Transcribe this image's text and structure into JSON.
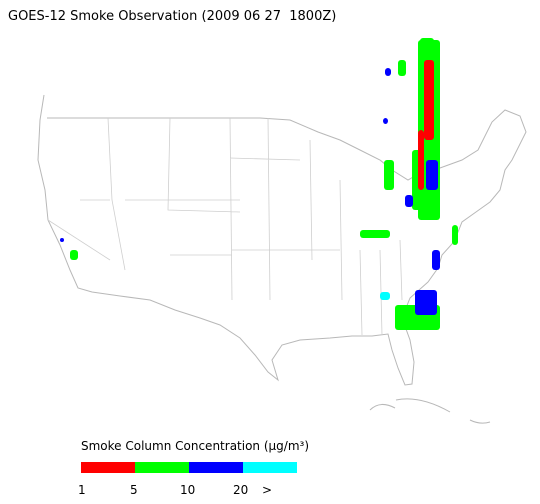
{
  "title": "GOES-12 Smoke Observation (2009 06 27  1800Z)",
  "legend": {
    "label": "Smoke Column Concentration (μg/m³)",
    "colors": [
      "#ff0000",
      "#00ff00",
      "#0000ff",
      "#00ffff"
    ],
    "ticks": [
      "1",
      "5",
      "10",
      "20",
      ">"
    ]
  }
}
